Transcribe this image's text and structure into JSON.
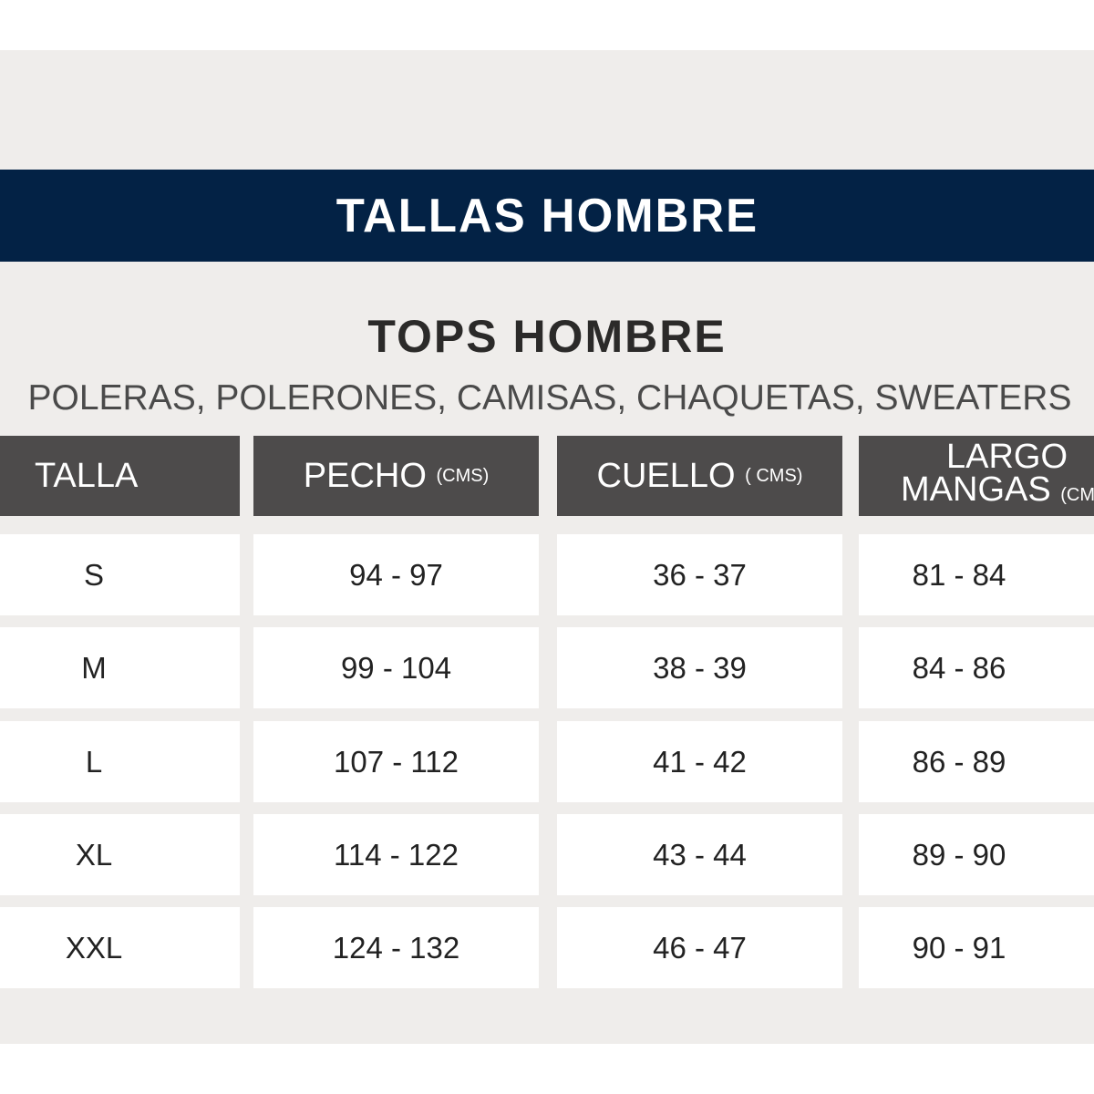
{
  "banner": {
    "title": "TALLAS HOMBRE"
  },
  "section": {
    "title": "TOPS HOMBRE",
    "subtitle": "POLERAS, POLERONES, CAMISAS, CHAQUETAS, SWEATERS"
  },
  "colors": {
    "banner": "#032245",
    "header": "#4d4b4b",
    "background": "#efedeb"
  },
  "table": {
    "headers": [
      {
        "label": "TALLA",
        "unit": ""
      },
      {
        "label": "PECHO",
        "unit": "(CMS)"
      },
      {
        "label": "CUELLO",
        "unit": "( CMS)"
      },
      {
        "label": "LARGO",
        "label2": "MANGAS",
        "unit": "(CMS)"
      }
    ],
    "rows": [
      [
        "S",
        "94 - 97",
        "36 - 37",
        "81 - 84"
      ],
      [
        "M",
        "99 - 104",
        "38 - 39",
        "84 - 86"
      ],
      [
        "L",
        "107 - 112",
        "41 - 42",
        "86 - 89"
      ],
      [
        "XL",
        "114 - 122",
        "43 - 44",
        "89 - 90"
      ],
      [
        "XXL",
        "124 - 132",
        "46 - 47",
        "90 - 91"
      ]
    ]
  }
}
